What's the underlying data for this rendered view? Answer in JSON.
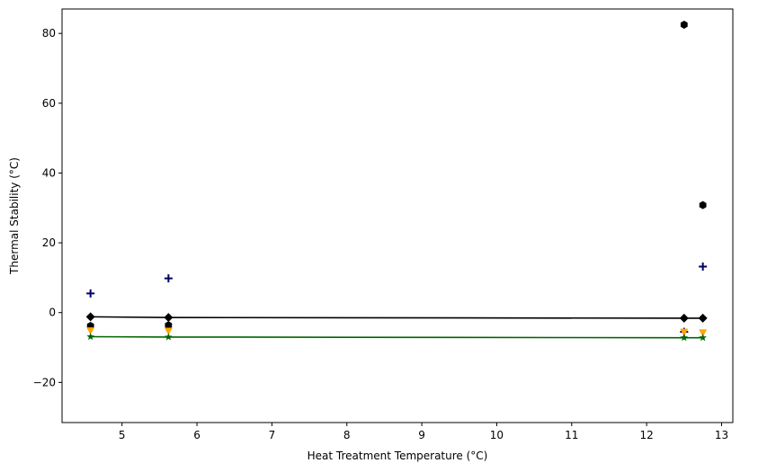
{
  "chart_data": {
    "type": "scatter",
    "title": "",
    "xlabel": "Heat Treatment Temperature (°C)",
    "ylabel": "Thermal Stability (°C)",
    "xlim": [
      4.2,
      13.15
    ],
    "ylim": [
      -31.5,
      87
    ],
    "xticks": [
      5,
      6,
      7,
      8,
      9,
      10,
      11,
      12,
      13
    ],
    "yticks": [
      -20,
      0,
      20,
      40,
      60,
      80
    ],
    "grid": false,
    "legend": "none",
    "series": [
      {
        "marker": "plus",
        "color": "#000066",
        "x": [
          4.58,
          5.62,
          12.5,
          12.75
        ],
        "y": [
          5.5,
          9.8,
          -5.5,
          13.2
        ]
      },
      {
        "marker": "hexagon",
        "color": "#000000",
        "x": [
          4.58,
          5.62,
          12.5,
          12.75
        ],
        "y": [
          -3.8,
          -3.6,
          82.5,
          30.8
        ]
      },
      {
        "marker": "triangle-down",
        "color": "#FFA500",
        "x": [
          4.58,
          5.62,
          12.5,
          12.75
        ],
        "y": [
          -5.2,
          -5.3,
          -5.6,
          -5.8
        ]
      },
      {
        "marker": "diamond",
        "color": "#000000",
        "line": true,
        "x": [
          4.58,
          5.62,
          12.5,
          12.75
        ],
        "y": [
          -1.2,
          -1.4,
          -1.6,
          -1.6
        ]
      },
      {
        "marker": "star",
        "color": "#006400",
        "line": true,
        "x": [
          4.58,
          5.62,
          12.5,
          12.75
        ],
        "y": [
          -6.9,
          -7.0,
          -7.2,
          -7.2
        ]
      }
    ]
  }
}
